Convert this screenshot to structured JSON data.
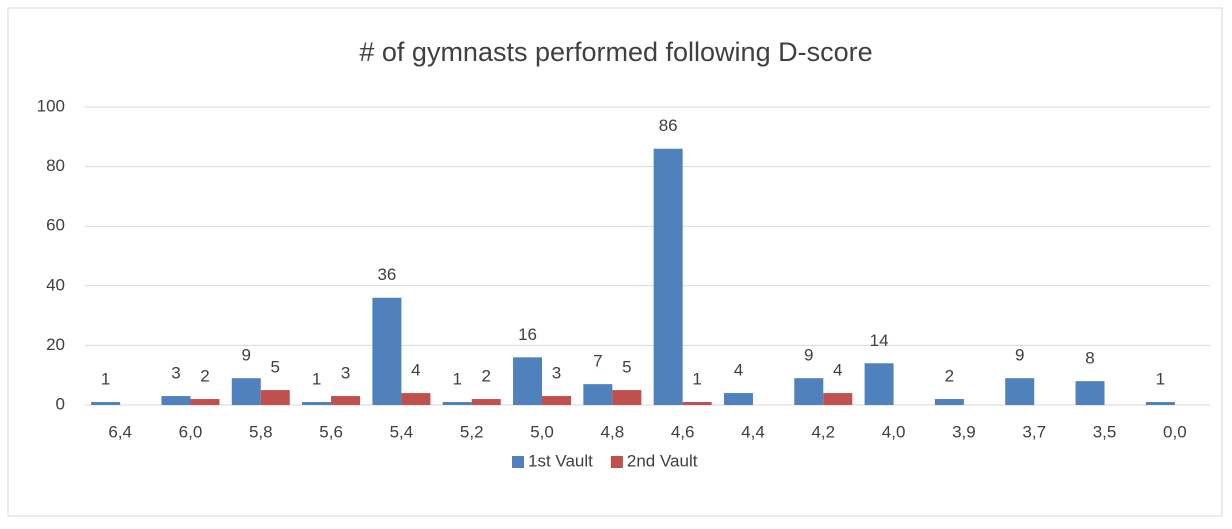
{
  "chart_data": {
    "type": "bar",
    "title": "# of gymnasts performed following D-score",
    "categories": [
      "6,4",
      "6,0",
      "5,8",
      "5,6",
      "5,4",
      "5,2",
      "5,0",
      "4,8",
      "4,6",
      "4,4",
      "4,2",
      "4,0",
      "3,9",
      "3,7",
      "3,5",
      "0,0"
    ],
    "series": [
      {
        "name": "1st Vault",
        "color": "#4f81bd",
        "values": [
          1,
          3,
          9,
          1,
          36,
          1,
          16,
          7,
          86,
          4,
          9,
          14,
          2,
          9,
          8,
          1
        ]
      },
      {
        "name": "2nd Vault",
        "color": "#c0504d",
        "values": [
          null,
          2,
          5,
          3,
          4,
          2,
          3,
          5,
          1,
          null,
          4,
          null,
          null,
          null,
          null,
          null
        ]
      }
    ],
    "ylim": [
      0,
      100
    ],
    "yticks": [
      0,
      20,
      40,
      60,
      80,
      100
    ],
    "grid": true,
    "legend": "bottom"
  }
}
